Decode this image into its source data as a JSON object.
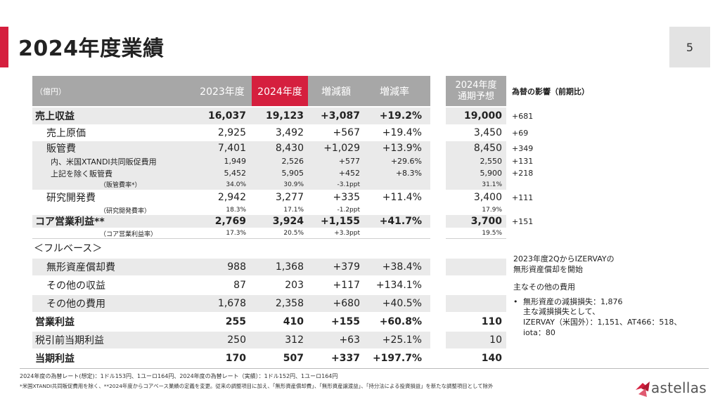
{
  "title": "2024年度業績",
  "page_number": "5",
  "table": {
    "unit": "（億円）",
    "headers": [
      "2023年度",
      "2024年度",
      "増減額",
      "増減率"
    ],
    "rows": [
      {
        "label": "売上収益",
        "v": [
          "16,037",
          "19,123",
          "+3,087",
          "+19.2%"
        ],
        "bold": true,
        "shaded": true
      },
      {
        "label": "売上原価",
        "v": [
          "2,925",
          "3,492",
          "+567",
          "+19.4%"
        ]
      },
      {
        "label": "販管費",
        "v": [
          "7,401",
          "8,430",
          "+1,029",
          "+13.9%"
        ],
        "shaded": true
      },
      {
        "label": "内、米国XTANDI共同販促費用",
        "v": [
          "1,949",
          "2,526",
          "+577",
          "+29.6%"
        ]
      },
      {
        "label": "上記を除く販管費",
        "v": [
          "5,452",
          "5,905",
          "+452",
          "+8.3%"
        ]
      },
      {
        "label": "（販管費率*）",
        "v": [
          "34.0%",
          "30.9%",
          "-3.1ppt",
          ""
        ]
      },
      {
        "label": "研究開発費",
        "v": [
          "2,942",
          "3,277",
          "+335",
          "+11.4%"
        ]
      },
      {
        "label": "（研究開発費率）",
        "v": [
          "18.3%",
          "17.1%",
          "-1.2ppt",
          ""
        ]
      },
      {
        "label": "コア営業利益**",
        "v": [
          "2,769",
          "3,924",
          "+1,155",
          "+41.7%"
        ],
        "bold": true,
        "shaded": true
      },
      {
        "label": "（コア営業利益率）",
        "v": [
          "17.3%",
          "20.5%",
          "+3.3ppt",
          ""
        ]
      },
      {
        "label": "＜フルベース＞"
      },
      {
        "label": "無形資産償却費",
        "v": [
          "988",
          "1,368",
          "+379",
          "+38.4%"
        ]
      },
      {
        "label": "その他の収益",
        "v": [
          "87",
          "203",
          "+117",
          "+134.1%"
        ]
      },
      {
        "label": "その他の費用",
        "v": [
          "1,678",
          "2,358",
          "+680",
          "+40.5%"
        ]
      },
      {
        "label": "営業利益",
        "v": [
          "255",
          "410",
          "+155",
          "+60.8%"
        ],
        "bold": true
      },
      {
        "label": "税引前当期利益",
        "v": [
          "250",
          "312",
          "+63",
          "+25.1%"
        ]
      },
      {
        "label": "当期利益",
        "v": [
          "170",
          "507",
          "+337",
          "+197.7%"
        ],
        "bold": true
      }
    ]
  },
  "forecast": {
    "header_line1": "2024年度",
    "header_line2": "通期予想",
    "values": [
      "19,000",
      "3,450",
      "8,450",
      "2,550",
      "5,900",
      "31.1%",
      "3,400",
      "17.9%",
      "3,700",
      "19.5%",
      "110",
      "10",
      "140"
    ]
  },
  "fx": {
    "header": "為替の影響（前期比）",
    "values": [
      "+681",
      "+69",
      "+349",
      "+131",
      "+218",
      "+111",
      "+151"
    ]
  },
  "notes": {
    "izervay_line1": "2023年度2QからIZERVAYの",
    "izervay_line2": "無形資産償却を開始",
    "other_costs_title": "主なその他の費用",
    "bullet": "•",
    "item_line1": "無形資産の減損損失：1,876",
    "item_line2": "主な減損損失として、",
    "item_line3": "IZERVAY（米国外）：1,151、AT466：518、",
    "item_line4": "iota：80"
  },
  "footnotes": {
    "line1": "2024年度の為替レート(想定)：1ドル153円、1ユーロ164円、2024年度の為替レート（実績）：1ドル152円、1ユーロ164円",
    "line2": "*米国XTANDI共同販促費用を除く、**2024年度からコアベース業績の定義を変更。従来の調整項目に加え、「無形資産償却費」、「無形資産譲渡益」、「持分法による投資損益」を新たな調整項目として除外"
  },
  "logo": {
    "text": "astellas",
    "accent_color": "#d51f3e"
  },
  "colors": {
    "accent": "#d51f3e",
    "header_gray": "#a7a7a7",
    "row_shade": "#eaeaea"
  }
}
